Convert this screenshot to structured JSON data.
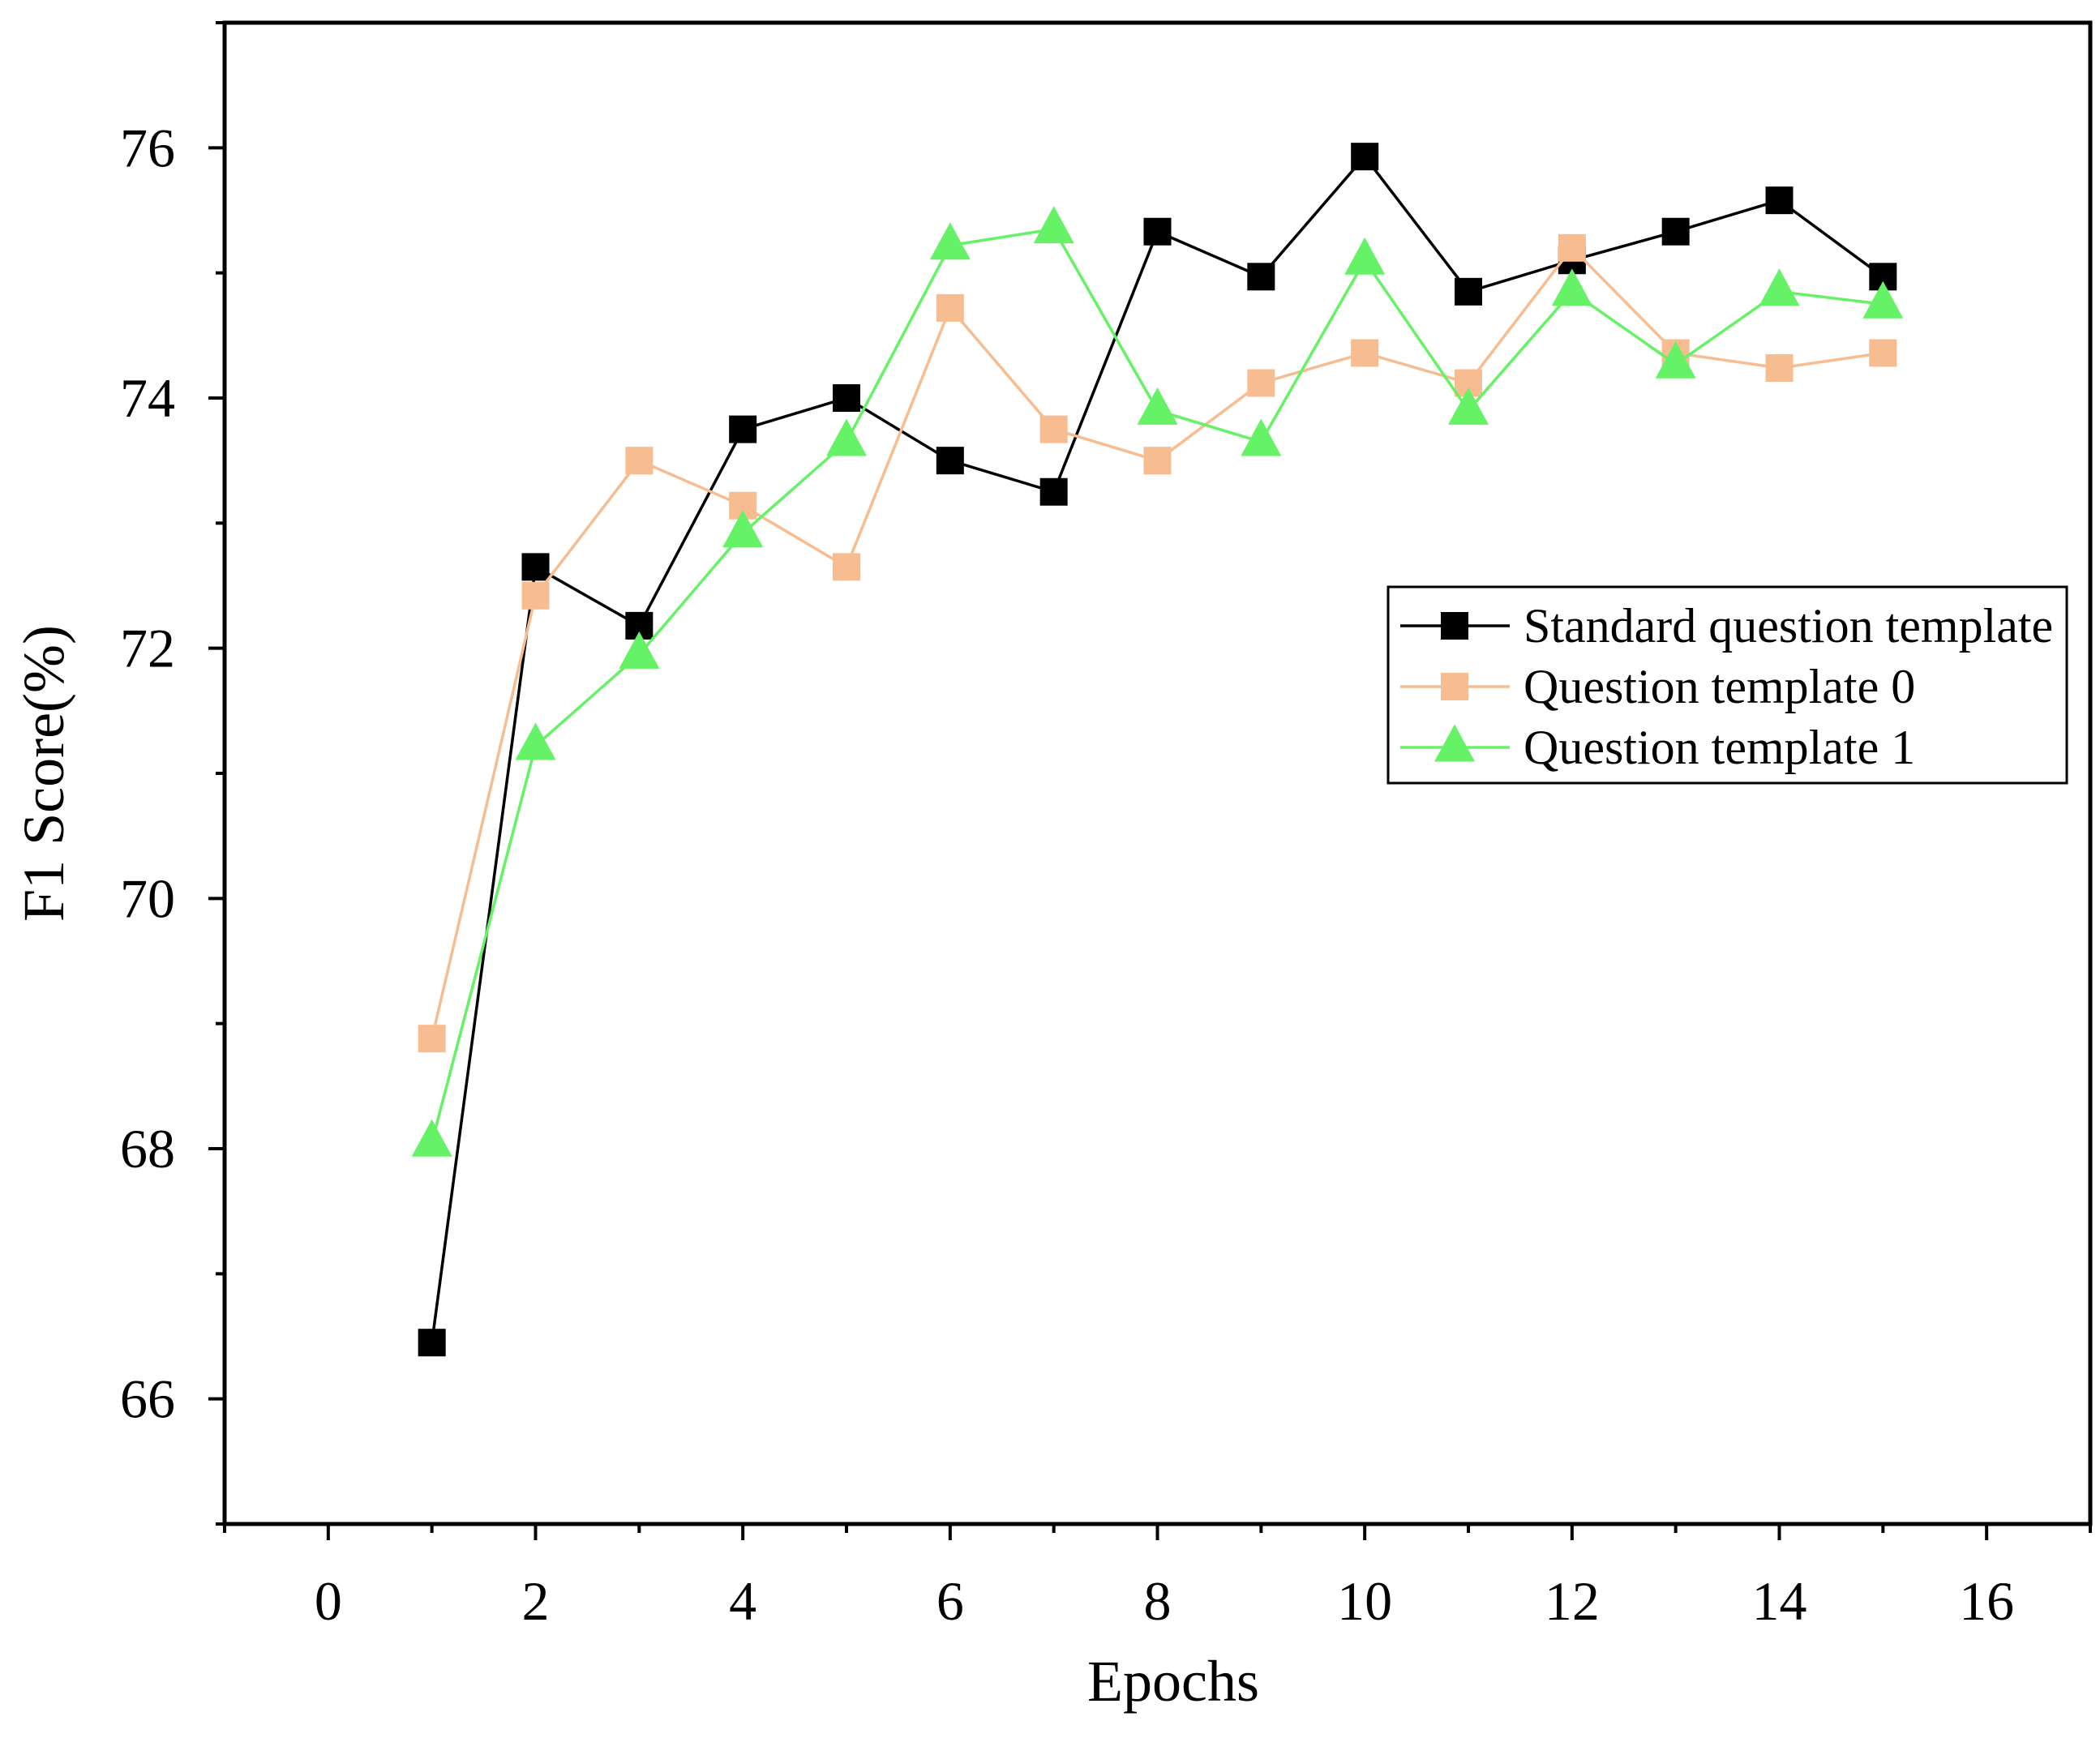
{
  "chart_data": {
    "type": "line",
    "title": "",
    "xlabel": "Epochs",
    "ylabel": "F1 Score(%)",
    "xlim": [
      -1,
      17
    ],
    "ylim": [
      65,
      77
    ],
    "xticks": [
      0,
      2,
      4,
      6,
      8,
      10,
      12,
      14,
      16
    ],
    "yticks": [
      66,
      68,
      70,
      72,
      74,
      76
    ],
    "grid": false,
    "legend_position": "right",
    "x": [
      1,
      2,
      3,
      4,
      5,
      6,
      7,
      8,
      9,
      10,
      11,
      12,
      13,
      14,
      15
    ],
    "series": [
      {
        "name": "Standard question template",
        "marker": "square",
        "color": "#000000",
        "values": [
          66.45,
          72.65,
          72.18,
          73.75,
          74.0,
          73.5,
          73.25,
          75.33,
          74.97,
          75.93,
          74.85,
          75.1,
          75.33,
          75.58,
          74.97
        ]
      },
      {
        "name": "Question template 0",
        "marker": "square",
        "color": "#F7BC8F",
        "values": [
          68.88,
          72.42,
          73.5,
          73.14,
          72.65,
          74.72,
          73.75,
          73.5,
          74.12,
          74.36,
          74.12,
          75.2,
          74.36,
          74.24,
          74.36
        ]
      },
      {
        "name": "Question template 1",
        "marker": "triangle",
        "color": "#66F266",
        "values": [
          68.05,
          71.22,
          71.95,
          72.92,
          73.65,
          75.22,
          75.35,
          73.9,
          73.65,
          75.1,
          73.9,
          74.85,
          74.27,
          74.85,
          74.75
        ]
      }
    ]
  }
}
